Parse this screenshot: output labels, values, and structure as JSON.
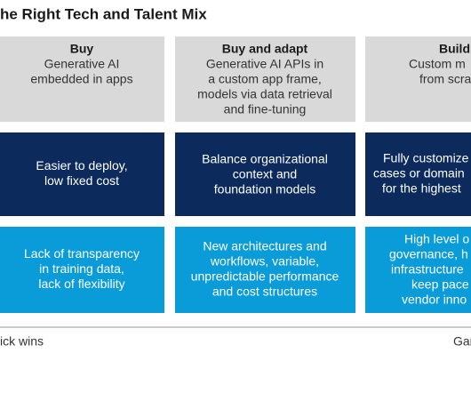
{
  "title": "he Right Tech and Talent Mix",
  "columns": [
    {
      "header": "Buy",
      "description": [
        "Generative AI",
        "embedded in apps"
      ],
      "advantage": [
        "Easier to deploy,",
        "low fixed cost"
      ],
      "challenge": [
        "Lack of transparency",
        "in training data,",
        "lack of flexibility"
      ]
    },
    {
      "header": "Buy and adapt",
      "description": [
        "Generative AI APIs in",
        "a custom app frame,",
        "models via data retrieval",
        "and fine-tuning"
      ],
      "advantage": [
        "Balance organizational",
        "context and",
        "foundation models"
      ],
      "challenge": [
        "New architectures and",
        "workflows, variable,",
        "unpredictable performance",
        "and cost structures"
      ]
    },
    {
      "header": "Build",
      "description": [
        "Custom m",
        "from scra"
      ],
      "advantage": [
        "Fully customize",
        "cases or domain",
        "for the highest"
      ],
      "challenge": [
        "High level o",
        "governance, h",
        "infrastructure",
        "keep pace",
        "vendor inno"
      ]
    }
  ],
  "axis": {
    "left": "ick wins",
    "right": "Gar"
  }
}
